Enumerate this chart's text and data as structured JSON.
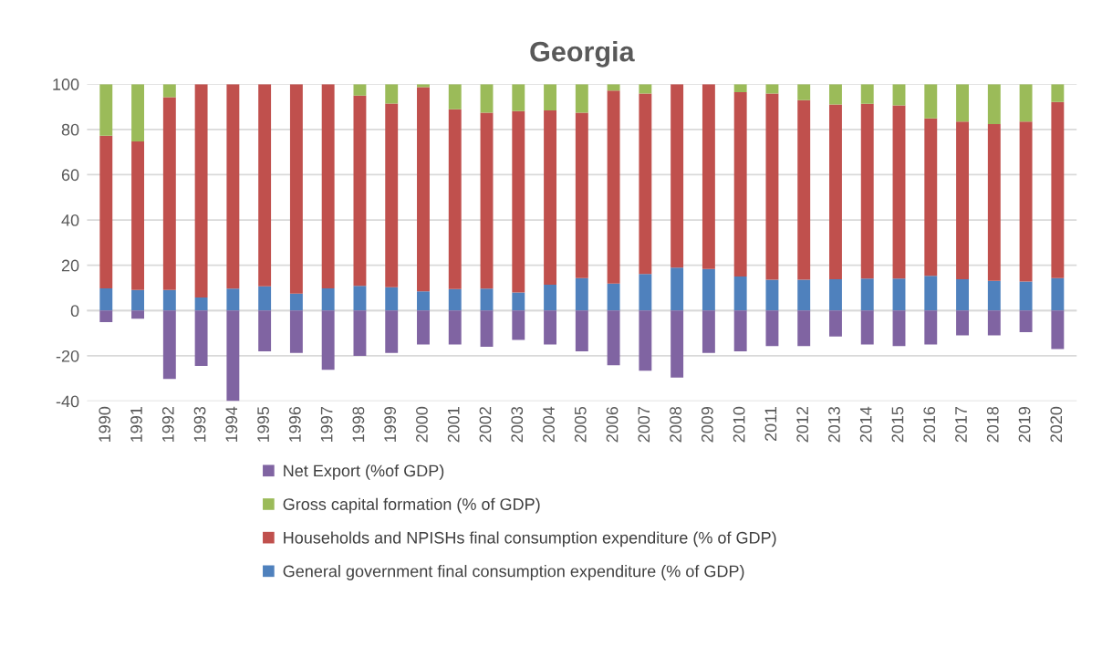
{
  "chart_data": {
    "type": "bar",
    "title": "Georgia",
    "stacked": true,
    "categories": [
      "1990",
      "1991",
      "1992",
      "1993",
      "1994",
      "1995",
      "1996",
      "1997",
      "1998",
      "1999",
      "2000",
      "2001",
      "2002",
      "2003",
      "2004",
      "2005",
      "2006",
      "2007",
      "2008",
      "2009",
      "2010",
      "2011",
      "2012",
      "2013",
      "2014",
      "2015",
      "2016",
      "2017",
      "2018",
      "2019",
      "2020"
    ],
    "series": [
      {
        "name": "General government final consumption expenditure (% of GDP)",
        "color": "#4f81bd",
        "values": [
          9.8,
          9.1,
          9.1,
          5.8,
          9.7,
          10.7,
          7.5,
          9.8,
          10.9,
          10.3,
          8.5,
          9.5,
          9.7,
          8.0,
          11.4,
          14.3,
          11.9,
          16.1,
          19.0,
          18.4,
          15.0,
          13.6,
          13.6,
          13.8,
          14.1,
          14.1,
          15.3,
          13.8,
          13.1,
          12.8,
          14.3
        ]
      },
      {
        "name": "Households and NPISHs final consumption expenditure (% of GDP)",
        "color": "#c0504d",
        "values": [
          67.4,
          65.6,
          85.1,
          94.2,
          90.3,
          89.3,
          92.5,
          90.2,
          84.0,
          81.1,
          90.2,
          79.4,
          77.7,
          80.1,
          77.0,
          73.1,
          85.2,
          79.7,
          81.0,
          81.6,
          81.4,
          82.2,
          79.3,
          77.2,
          77.2,
          76.5,
          69.6,
          69.6,
          69.2,
          70.6,
          77.8
        ]
      },
      {
        "name": "Gross capital formation (% of GDP)",
        "color": "#9bbb59",
        "values": [
          22.8,
          25.3,
          5.8,
          0,
          0,
          0,
          0,
          0,
          5.1,
          8.6,
          1.3,
          11.1,
          12.6,
          11.9,
          11.6,
          12.6,
          2.9,
          4.2,
          0,
          0,
          3.6,
          4.2,
          7.1,
          9.0,
          8.7,
          9.4,
          15.1,
          16.6,
          17.7,
          16.6,
          7.9
        ]
      },
      {
        "name": "Net Export (%of GDP)",
        "color": "#8064a2",
        "values": [
          -5.1,
          -3.6,
          -30.2,
          -24.5,
          -40,
          -18,
          -18.7,
          -26.2,
          -20,
          -18.7,
          -15,
          -15,
          -16,
          -13,
          -15,
          -18,
          -24.2,
          -26.6,
          -29.6,
          -18.7,
          -18,
          -15.7,
          -15.7,
          -11.5,
          -15,
          -15.7,
          -15,
          -11,
          -11,
          -9.5,
          -17
        ]
      }
    ],
    "ylim": [
      -40,
      100
    ],
    "yticks": [
      -40,
      -20,
      0,
      20,
      40,
      60,
      80,
      100
    ],
    "grid": "y",
    "legend": "bottom"
  }
}
